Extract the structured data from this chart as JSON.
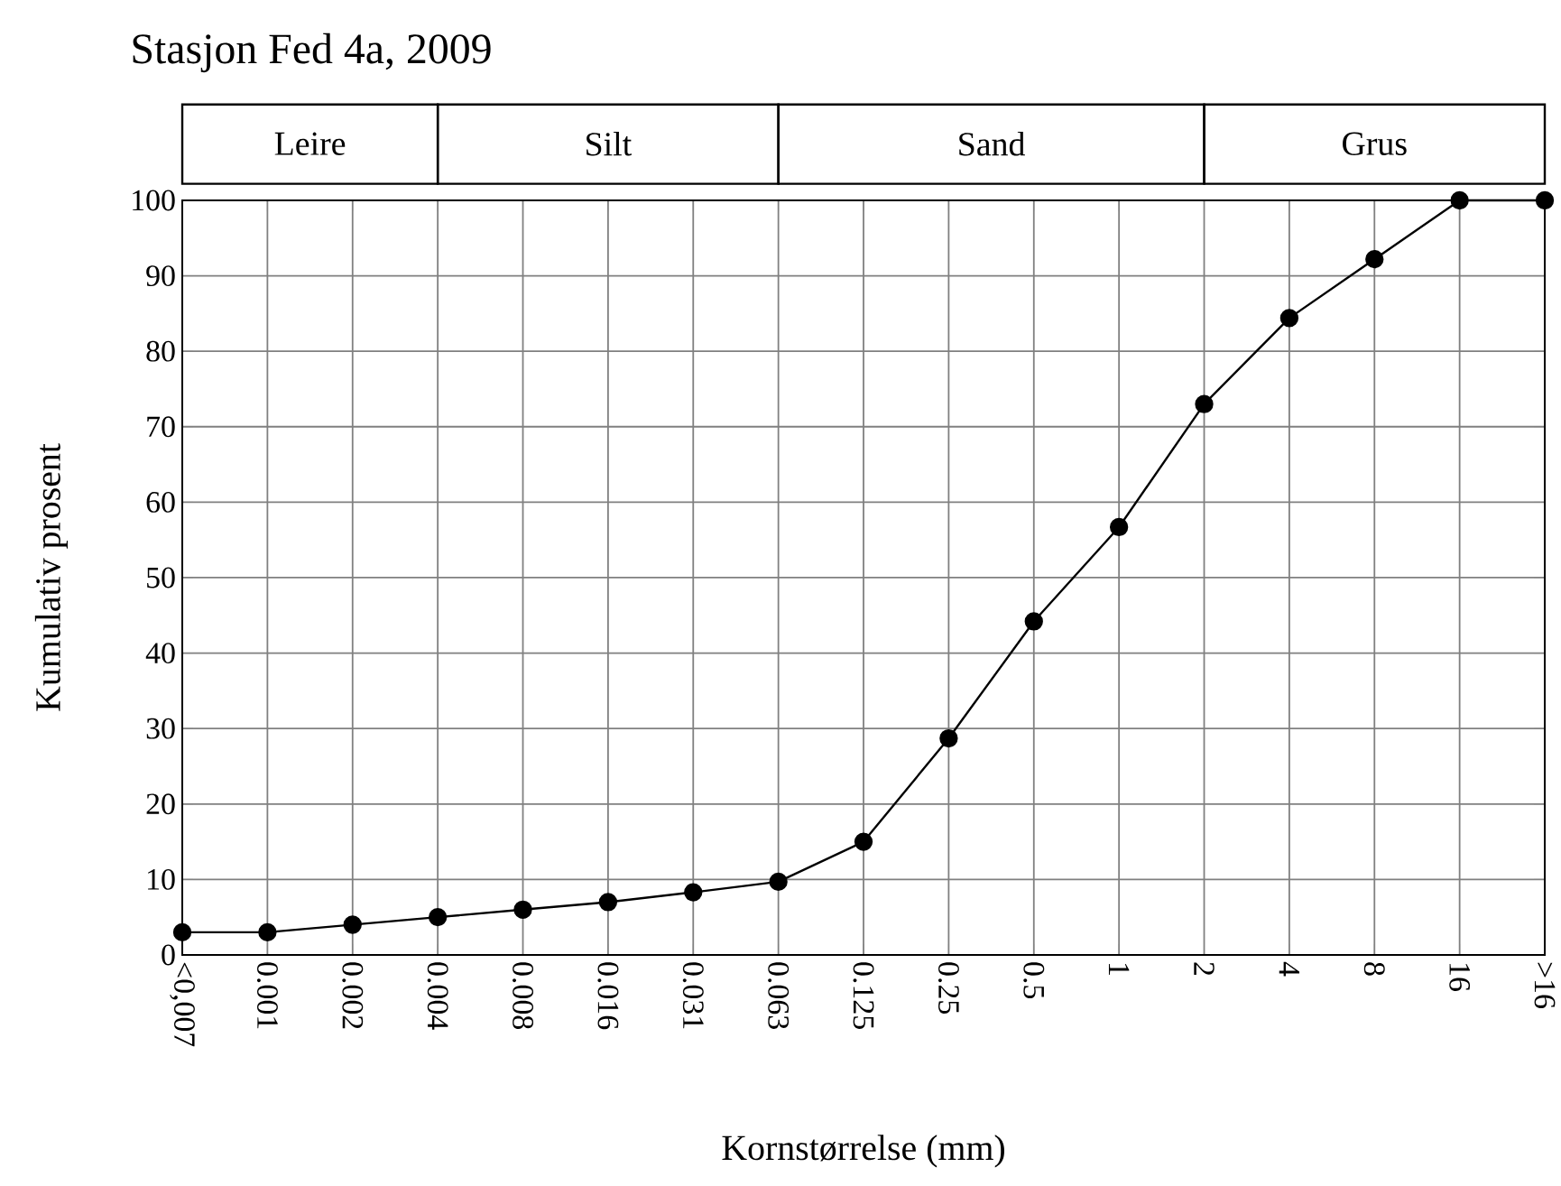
{
  "chart_data": {
    "type": "line",
    "title": "Stasjon Fed 4a, 2009",
    "xlabel": "Kornstørrelse (mm)",
    "ylabel": "Kumulativ prosent",
    "categories": [
      "<0,007",
      "0.001",
      "0.002",
      "0.004",
      "0.008",
      "0.016",
      "0.031",
      "0.063",
      "0.125",
      "0.25",
      "0.5",
      "1",
      "2",
      "4",
      "8",
      "16",
      ">16"
    ],
    "values": [
      3,
      3,
      4,
      5,
      6,
      7,
      8.3,
      9.7,
      15,
      28.7,
      44.2,
      56.7,
      73,
      84.4,
      92.2,
      100,
      100
    ],
    "color": "#000000",
    "marker": "circle",
    "line_style": "solid",
    "grid": true,
    "ylim": [
      0,
      100
    ],
    "yticks": [
      0,
      10,
      20,
      30,
      40,
      50,
      60,
      70,
      80,
      90,
      100
    ],
    "annotations": [
      "Leire",
      "Silt",
      "Sand",
      "Grus"
    ]
  }
}
